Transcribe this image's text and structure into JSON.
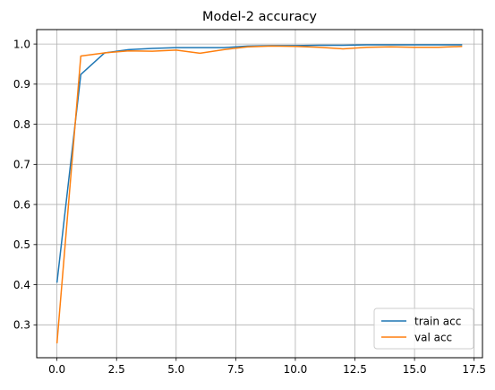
{
  "chart_data": {
    "type": "line",
    "title": "Model-2 accuracy",
    "xlabel": "",
    "ylabel": "",
    "xlim": [
      -0.85,
      17.85
    ],
    "ylim": [
      0.218,
      1.036
    ],
    "xticks": [
      0.0,
      2.5,
      5.0,
      7.5,
      10.0,
      12.5,
      15.0,
      17.5
    ],
    "xtick_labels": [
      "0.0",
      "2.5",
      "5.0",
      "7.5",
      "10.0",
      "12.5",
      "15.0",
      "17.5"
    ],
    "yticks": [
      0.3,
      0.4,
      0.5,
      0.6,
      0.7,
      0.8,
      0.9,
      1.0
    ],
    "ytick_labels": [
      "0.3",
      "0.4",
      "0.5",
      "0.6",
      "0.7",
      "0.8",
      "0.9",
      "1.0"
    ],
    "grid": true,
    "legend_position": "lower-right",
    "x": [
      0,
      1,
      2,
      3,
      4,
      5,
      6,
      7,
      8,
      9,
      10,
      11,
      12,
      13,
      14,
      15,
      16,
      17
    ],
    "series": [
      {
        "name": "train acc",
        "color": "#1f77b4",
        "values": [
          0.405,
          0.924,
          0.978,
          0.986,
          0.989,
          0.991,
          0.991,
          0.991,
          0.995,
          0.996,
          0.996,
          0.997,
          0.997,
          0.998,
          0.998,
          0.998,
          0.998,
          0.998
        ]
      },
      {
        "name": "val acc",
        "color": "#ff7f0e",
        "values": [
          0.254,
          0.97,
          0.978,
          0.983,
          0.982,
          0.985,
          0.977,
          0.986,
          0.993,
          0.995,
          0.994,
          0.992,
          0.988,
          0.992,
          0.993,
          0.992,
          0.992,
          0.994
        ]
      }
    ]
  }
}
